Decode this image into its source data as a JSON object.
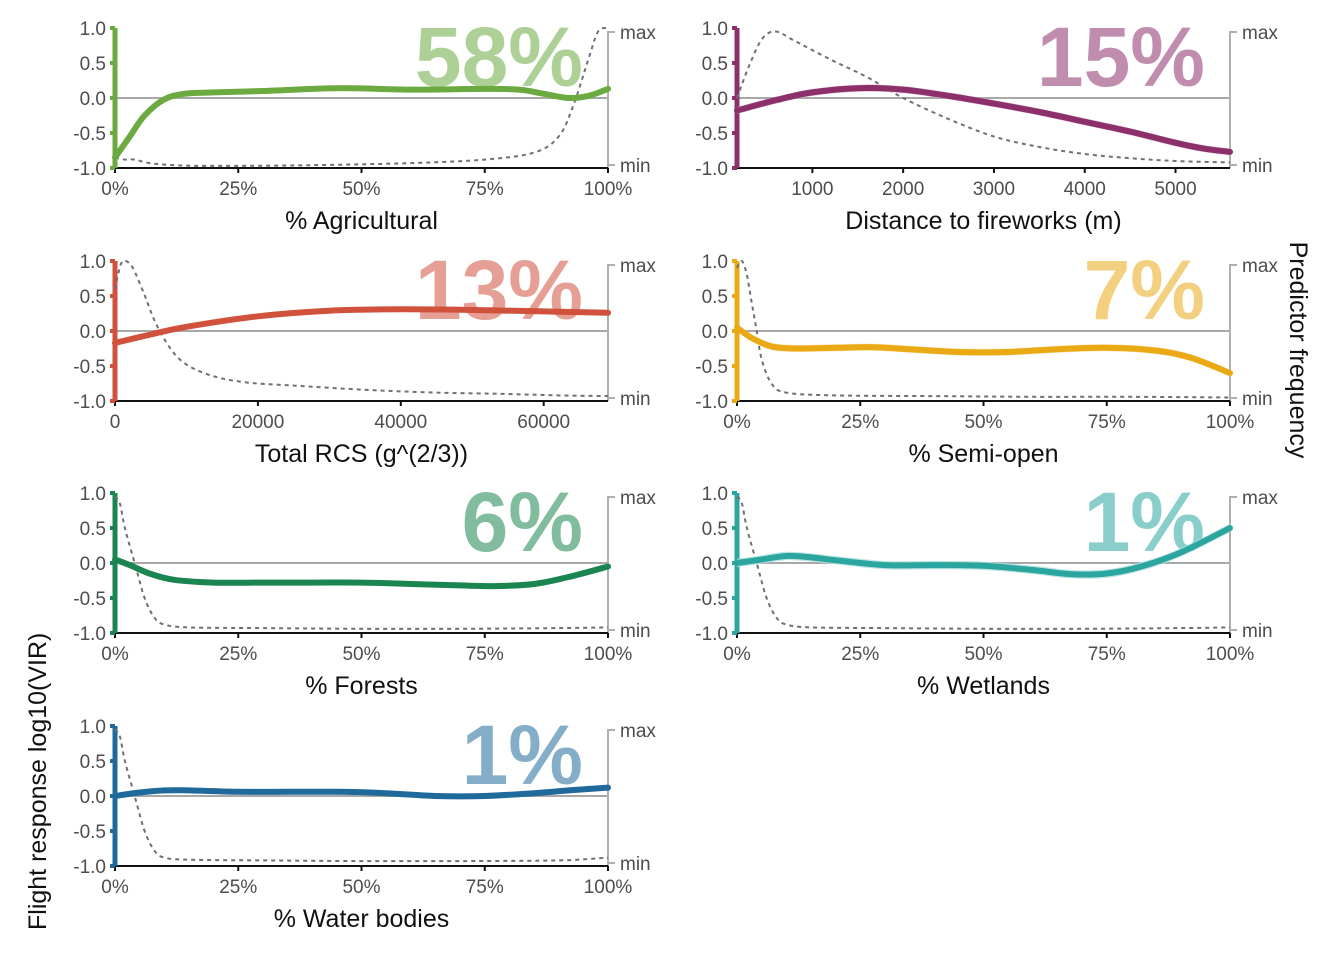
{
  "y_axis_labels": {
    "left_label": "Flight response log10(VIR)",
    "right_label": "Predictor frequency"
  },
  "chart_data": [
    {
      "type": "line",
      "predictor": "% Agricultural",
      "xlabel": "% Agricultural",
      "importance": "58%",
      "color": "#6aaa40",
      "x_ticks": [
        0,
        0.25,
        0.5,
        0.75,
        1.0
      ],
      "x_tick_labels": [
        "0%",
        "25%",
        "50%",
        "75%",
        "100%"
      ],
      "xlim": [
        0,
        1.0
      ],
      "ylim": [
        -1.0,
        1.0
      ],
      "y_ticks": [
        "1.0",
        "0.5",
        "0.0",
        "-0.5",
        "-1.0"
      ],
      "freq_labels": [
        "max",
        "min"
      ],
      "response": {
        "x": [
          0,
          0.03,
          0.06,
          0.1,
          0.14,
          0.2,
          0.3,
          0.45,
          0.6,
          0.75,
          0.82,
          0.87,
          0.92,
          0.96,
          1.0
        ],
        "y": [
          -0.85,
          -0.55,
          -0.25,
          -0.02,
          0.06,
          0.08,
          0.1,
          0.14,
          0.12,
          0.13,
          0.12,
          0.06,
          0.0,
          0.03,
          0.13
        ]
      },
      "band": 0.03,
      "frequency": {
        "x": [
          0,
          0.02,
          0.04,
          0.07,
          0.12,
          0.2,
          0.4,
          0.6,
          0.75,
          0.85,
          0.9,
          0.93,
          0.96,
          0.98,
          1.0
        ],
        "y": [
          -0.85,
          -0.88,
          -0.88,
          -0.93,
          -0.96,
          -0.97,
          -0.96,
          -0.93,
          -0.88,
          -0.78,
          -0.55,
          -0.1,
          0.55,
          0.95,
          1.0
        ]
      }
    },
    {
      "type": "line",
      "predictor": "Distance to fireworks (m)",
      "xlabel": "Distance to fireworks (m)",
      "importance": "15%",
      "color": "#8c2f6b",
      "x_ticks": [
        1000,
        2000,
        3000,
        4000,
        5000
      ],
      "x_tick_labels": [
        "1000",
        "2000",
        "3000",
        "4000",
        "5000"
      ],
      "xlim": [
        170,
        5600
      ],
      "ylim": [
        -1.0,
        1.0
      ],
      "y_ticks": [
        "1.0",
        "0.5",
        "0.0",
        "-0.5",
        "-1.0"
      ],
      "freq_labels": [
        "max",
        "min"
      ],
      "response": {
        "x": [
          170,
          600,
          1000,
          1500,
          2000,
          2500,
          3000,
          3500,
          4000,
          4500,
          5000,
          5300,
          5600
        ],
        "y": [
          -0.18,
          -0.03,
          0.08,
          0.14,
          0.12,
          0.03,
          -0.08,
          -0.2,
          -0.34,
          -0.48,
          -0.64,
          -0.72,
          -0.77
        ]
      },
      "band": 0.05,
      "frequency": {
        "x": [
          170,
          300,
          450,
          600,
          800,
          1200,
          1600,
          2000,
          2500,
          3000,
          3500,
          4000,
          4500,
          5000,
          5600
        ],
        "y": [
          0.0,
          0.45,
          0.85,
          0.95,
          0.82,
          0.55,
          0.3,
          0.0,
          -0.3,
          -0.55,
          -0.7,
          -0.8,
          -0.86,
          -0.9,
          -0.92
        ]
      }
    },
    {
      "type": "line",
      "predictor": "Total RCS (g^(2/3))",
      "xlabel": "Total RCS (g^(2/3))",
      "importance": "13%",
      "color": "#d0513c",
      "x_ticks": [
        0,
        20000,
        40000,
        60000
      ],
      "x_tick_labels": [
        "0",
        "20000",
        "40000",
        "60000"
      ],
      "xlim": [
        0,
        69000
      ],
      "ylim": [
        -1.0,
        1.0
      ],
      "y_ticks": [
        "1.0",
        "0.5",
        "0.0",
        "-0.5",
        "-1.0"
      ],
      "freq_labels": [
        "max",
        "min"
      ],
      "response": {
        "x": [
          0,
          5000,
          10000,
          20000,
          30000,
          40000,
          50000,
          60000,
          69000
        ],
        "y": [
          -0.17,
          -0.05,
          0.06,
          0.21,
          0.29,
          0.31,
          0.3,
          0.28,
          0.26
        ]
      },
      "band": 0.02,
      "frequency": {
        "x": [
          0,
          800,
          1500,
          2500,
          4000,
          6000,
          9000,
          13000,
          18000,
          25000,
          35000,
          45000,
          55000,
          62000,
          69000
        ],
        "y": [
          0.6,
          0.95,
          1.0,
          0.9,
          0.55,
          0.05,
          -0.4,
          -0.62,
          -0.73,
          -0.78,
          -0.84,
          -0.88,
          -0.9,
          -0.92,
          -0.93
        ]
      }
    },
    {
      "type": "line",
      "predictor": "% Semi-open",
      "xlabel": "% Semi-open",
      "importance": "7%",
      "color": "#eaaa16",
      "x_ticks": [
        0,
        0.25,
        0.5,
        0.75,
        1.0
      ],
      "x_tick_labels": [
        "0%",
        "25%",
        "50%",
        "75%",
        "100%"
      ],
      "xlim": [
        0,
        1.0
      ],
      "ylim": [
        -1.0,
        1.0
      ],
      "y_ticks": [
        "1.0",
        "0.5",
        "0.0",
        "-0.5",
        "-1.0"
      ],
      "freq_labels": [
        "max",
        "min"
      ],
      "response": {
        "x": [
          0,
          0.03,
          0.07,
          0.12,
          0.2,
          0.27,
          0.35,
          0.45,
          0.55,
          0.65,
          0.75,
          0.85,
          0.92,
          1.0
        ],
        "y": [
          0.05,
          -0.1,
          -0.22,
          -0.25,
          -0.24,
          -0.23,
          -0.26,
          -0.3,
          -0.3,
          -0.26,
          -0.24,
          -0.28,
          -0.38,
          -0.6
        ]
      },
      "band": 0.05,
      "frequency": {
        "x": [
          0,
          0.01,
          0.02,
          0.03,
          0.04,
          0.05,
          0.07,
          0.1,
          0.2,
          0.4,
          0.6,
          0.8,
          1.0
        ],
        "y": [
          0.9,
          1.0,
          0.8,
          0.4,
          0.0,
          -0.4,
          -0.75,
          -0.88,
          -0.92,
          -0.93,
          -0.94,
          -0.94,
          -0.95
        ]
      }
    },
    {
      "type": "line",
      "predictor": "% Forests",
      "xlabel": "% Forests",
      "importance": "6%",
      "color": "#1a8550",
      "x_ticks": [
        0,
        0.25,
        0.5,
        0.75,
        1.0
      ],
      "x_tick_labels": [
        "0%",
        "25%",
        "50%",
        "75%",
        "100%"
      ],
      "xlim": [
        0,
        1.0
      ],
      "ylim": [
        -1.0,
        1.0
      ],
      "y_ticks": [
        "1.0",
        "0.5",
        "0.0",
        "-0.5",
        "-1.0"
      ],
      "freq_labels": [
        "max",
        "min"
      ],
      "response": {
        "x": [
          0,
          0.03,
          0.07,
          0.12,
          0.2,
          0.3,
          0.4,
          0.5,
          0.6,
          0.7,
          0.77,
          0.85,
          0.92,
          1.0
        ],
        "y": [
          0.05,
          -0.03,
          -0.15,
          -0.24,
          -0.28,
          -0.28,
          -0.28,
          -0.28,
          -0.3,
          -0.32,
          -0.33,
          -0.3,
          -0.2,
          -0.05
        ]
      },
      "band": 0.03,
      "frequency": {
        "x": [
          0,
          0.01,
          0.02,
          0.04,
          0.06,
          0.08,
          0.1,
          0.15,
          0.3,
          0.5,
          0.7,
          0.9,
          1.0
        ],
        "y": [
          0.95,
          0.85,
          0.5,
          0.0,
          -0.5,
          -0.78,
          -0.88,
          -0.92,
          -0.93,
          -0.94,
          -0.94,
          -0.93,
          -0.92
        ]
      }
    },
    {
      "type": "line",
      "predictor": "% Wetlands",
      "xlabel": "% Wetlands",
      "importance": "1%",
      "color": "#2aa5a0",
      "x_ticks": [
        0,
        0.25,
        0.5,
        0.75,
        1.0
      ],
      "x_tick_labels": [
        "0%",
        "25%",
        "50%",
        "75%",
        "100%"
      ],
      "xlim": [
        0,
        1.0
      ],
      "ylim": [
        -1.0,
        1.0
      ],
      "y_ticks": [
        "1.0",
        "0.5",
        "0.0",
        "-0.5",
        "-1.0"
      ],
      "freq_labels": [
        "max",
        "min"
      ],
      "response": {
        "x": [
          0,
          0.05,
          0.1,
          0.15,
          0.2,
          0.3,
          0.4,
          0.5,
          0.6,
          0.68,
          0.75,
          0.82,
          0.9,
          1.0
        ],
        "y": [
          0.0,
          0.05,
          0.1,
          0.08,
          0.04,
          -0.03,
          -0.03,
          -0.04,
          -0.1,
          -0.16,
          -0.15,
          -0.05,
          0.15,
          0.5
        ]
      },
      "band": 0.06,
      "frequency": {
        "x": [
          0,
          0.01,
          0.02,
          0.04,
          0.06,
          0.08,
          0.1,
          0.15,
          0.3,
          0.5,
          0.7,
          0.9,
          1.0
        ],
        "y": [
          0.95,
          0.85,
          0.5,
          0.0,
          -0.5,
          -0.78,
          -0.88,
          -0.92,
          -0.93,
          -0.94,
          -0.94,
          -0.93,
          -0.92
        ]
      }
    },
    {
      "type": "line",
      "predictor": "% Water bodies",
      "xlabel": "% Water bodies",
      "importance": "1%",
      "color": "#1f6a9a",
      "x_ticks": [
        0,
        0.25,
        0.5,
        0.75,
        1.0
      ],
      "x_tick_labels": [
        "0%",
        "25%",
        "50%",
        "75%",
        "100%"
      ],
      "xlim": [
        0,
        1.0
      ],
      "ylim": [
        -1.0,
        1.0
      ],
      "y_ticks": [
        "1.0",
        "0.5",
        "0.0",
        "-0.5",
        "-1.0"
      ],
      "freq_labels": [
        "max",
        "min"
      ],
      "response": {
        "x": [
          0,
          0.05,
          0.1,
          0.15,
          0.25,
          0.35,
          0.45,
          0.55,
          0.65,
          0.75,
          0.85,
          0.92,
          1.0
        ],
        "y": [
          0.0,
          0.05,
          0.08,
          0.08,
          0.06,
          0.06,
          0.06,
          0.04,
          0.0,
          0.0,
          0.04,
          0.08,
          0.12
        ]
      },
      "band": 0.03,
      "frequency": {
        "x": [
          0,
          0.01,
          0.02,
          0.04,
          0.06,
          0.08,
          0.1,
          0.15,
          0.3,
          0.5,
          0.7,
          0.9,
          0.96,
          1.0
        ],
        "y": [
          0.95,
          0.85,
          0.5,
          0.0,
          -0.5,
          -0.78,
          -0.88,
          -0.91,
          -0.92,
          -0.93,
          -0.93,
          -0.92,
          -0.9,
          -0.88
        ]
      }
    }
  ]
}
